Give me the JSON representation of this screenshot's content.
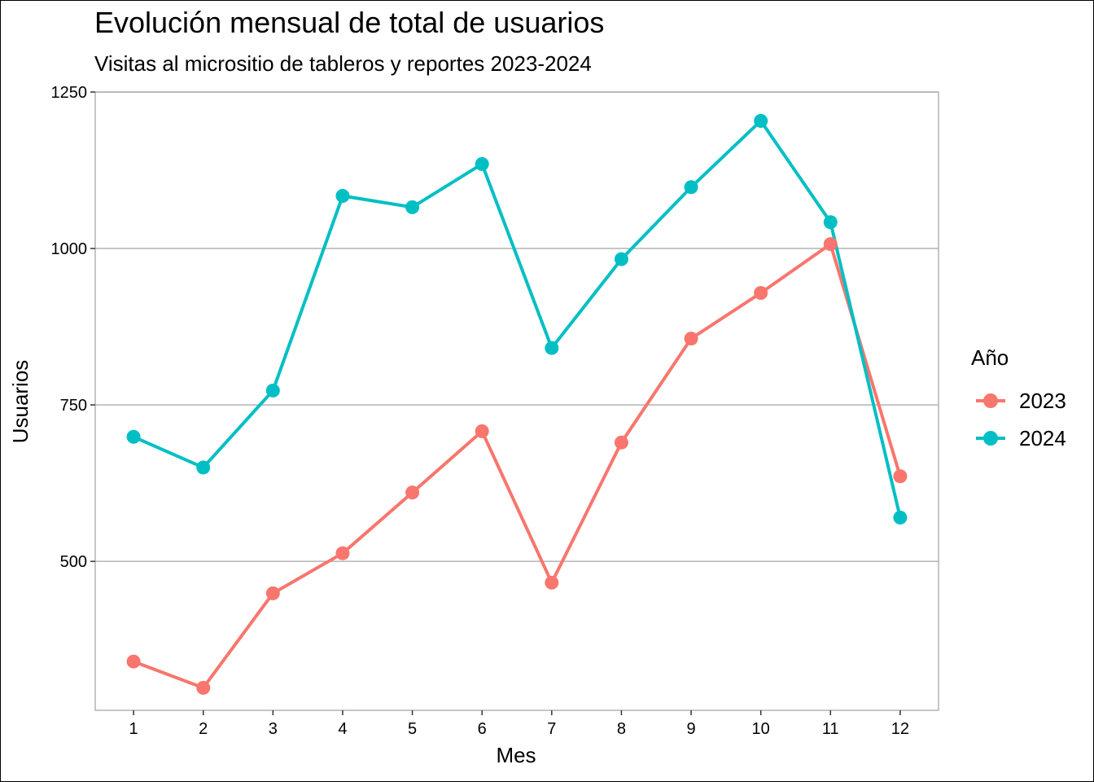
{
  "chart_data": {
    "type": "line",
    "title": "Evolución mensual de total de usuarios",
    "subtitle": "Visitas al micrositio de tableros y reportes 2023-2024",
    "xlabel": "Mes",
    "ylabel": "Usuarios",
    "x": [
      1,
      2,
      3,
      4,
      5,
      6,
      7,
      8,
      9,
      10,
      11,
      12
    ],
    "xlim": [
      0.45,
      12.55
    ],
    "ylim": [
      262,
      1250
    ],
    "yticks": [
      500,
      750,
      1000,
      1250
    ],
    "grid": "horizontal-major",
    "legend": {
      "title": "Año",
      "position": "right"
    },
    "series": [
      {
        "name": "2023",
        "color": "#F8766D",
        "values": [
          340,
          298,
          449,
          513,
          610,
          708,
          466,
          690,
          856,
          929,
          1007,
          636
        ]
      },
      {
        "name": "2024",
        "color": "#00BFC4",
        "values": [
          699,
          650,
          773,
          1084,
          1066,
          1135,
          841,
          983,
          1098,
          1204,
          1042,
          570
        ]
      }
    ]
  }
}
